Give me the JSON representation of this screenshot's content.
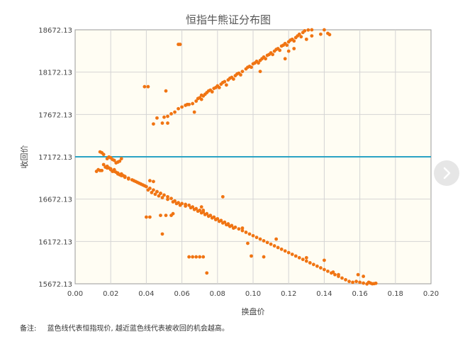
{
  "chart_data": {
    "type": "scatter",
    "title": "恒指牛熊证分布图",
    "xlabel": "换盘价",
    "ylabel": "收回价",
    "xlim": [
      0.0,
      0.2
    ],
    "ylim": [
      15672.13,
      18672.13
    ],
    "x_ticks": [
      "0.00",
      "0.02",
      "0.04",
      "0.06",
      "0.08",
      "0.10",
      "0.12",
      "0.14",
      "0.16",
      "0.18",
      "0.20"
    ],
    "y_ticks": [
      "15672.13",
      "16172.13",
      "16672.13",
      "17172.13",
      "17672.13",
      "18172.13",
      "18672.13"
    ],
    "grid": true,
    "reference_line": {
      "y": 17172.13,
      "color": "#2aa3c4"
    },
    "point_color": "#f07412",
    "series": [
      {
        "points": [
          [
            0.046,
            17630
          ],
          [
            0.05,
            17640
          ],
          [
            0.052,
            17650
          ],
          [
            0.054,
            17680
          ],
          [
            0.056,
            17700
          ],
          [
            0.058,
            17740
          ],
          [
            0.06,
            17760
          ],
          [
            0.062,
            17780
          ],
          [
            0.064,
            17790
          ],
          [
            0.066,
            17800
          ],
          [
            0.068,
            17830
          ],
          [
            0.069,
            17860
          ],
          [
            0.07,
            17870
          ],
          [
            0.072,
            17890
          ],
          [
            0.073,
            17910
          ],
          [
            0.074,
            17930
          ],
          [
            0.075,
            17950
          ],
          [
            0.076,
            17960
          ],
          [
            0.078,
            17980
          ],
          [
            0.079,
            17990
          ],
          [
            0.08,
            18010
          ],
          [
            0.082,
            18030
          ],
          [
            0.083,
            18050
          ],
          [
            0.084,
            18060
          ],
          [
            0.086,
            18080
          ],
          [
            0.087,
            18100
          ],
          [
            0.088,
            18110
          ],
          [
            0.09,
            18130
          ],
          [
            0.091,
            18150
          ],
          [
            0.092,
            18160
          ],
          [
            0.094,
            18180
          ],
          [
            0.096,
            18210
          ],
          [
            0.097,
            18230
          ],
          [
            0.098,
            18240
          ],
          [
            0.1,
            18270
          ],
          [
            0.101,
            18280
          ],
          [
            0.102,
            18300
          ],
          [
            0.104,
            18310
          ],
          [
            0.105,
            18330
          ],
          [
            0.106,
            18350
          ],
          [
            0.108,
            18370
          ],
          [
            0.109,
            18380
          ],
          [
            0.11,
            18400
          ],
          [
            0.112,
            18420
          ],
          [
            0.113,
            18440
          ],
          [
            0.114,
            18450
          ],
          [
            0.116,
            18480
          ],
          [
            0.117,
            18490
          ],
          [
            0.118,
            18510
          ],
          [
            0.12,
            18530
          ],
          [
            0.121,
            18550
          ],
          [
            0.122,
            18560
          ],
          [
            0.124,
            18580
          ],
          [
            0.125,
            18600
          ],
          [
            0.126,
            18620
          ],
          [
            0.128,
            18640
          ],
          [
            0.129,
            18660
          ],
          [
            0.131,
            18670
          ],
          [
            0.133,
            18672
          ],
          [
            0.071,
            17900
          ],
          [
            0.077,
            17940
          ],
          [
            0.081,
            17990
          ],
          [
            0.085,
            18020
          ],
          [
            0.089,
            18090
          ],
          [
            0.093,
            18140
          ],
          [
            0.099,
            18230
          ],
          [
            0.103,
            18280
          ],
          [
            0.107,
            18330
          ],
          [
            0.111,
            18380
          ],
          [
            0.115,
            18430
          ],
          [
            0.119,
            18490
          ],
          [
            0.123,
            18540
          ],
          [
            0.127,
            18590
          ],
          [
            0.039,
            18000
          ],
          [
            0.041,
            18000
          ],
          [
            0.051,
            17950
          ],
          [
            0.058,
            18500
          ],
          [
            0.059,
            18500
          ],
          [
            0.044,
            17560
          ],
          [
            0.049,
            17570
          ],
          [
            0.052,
            17570
          ],
          [
            0.063,
            17790
          ],
          [
            0.067,
            17700
          ],
          [
            0.071,
            17850
          ],
          [
            0.104,
            18180
          ],
          [
            0.118,
            18330
          ],
          [
            0.12,
            18420
          ],
          [
            0.123,
            18450
          ],
          [
            0.13,
            18560
          ],
          [
            0.133,
            18600
          ],
          [
            0.138,
            18620
          ],
          [
            0.142,
            18630
          ],
          [
            0.143,
            18615
          ],
          [
            0.14,
            18672
          ]
        ]
      },
      {
        "points": [
          [
            0.013,
            17020
          ],
          [
            0.015,
            17010
          ],
          [
            0.016,
            17080
          ],
          [
            0.017,
            17050
          ],
          [
            0.018,
            17060
          ],
          [
            0.019,
            17040
          ],
          [
            0.02,
            17030
          ],
          [
            0.021,
            17000
          ],
          [
            0.022,
            17020
          ],
          [
            0.023,
            16990
          ],
          [
            0.024,
            16970
          ],
          [
            0.025,
            16960
          ],
          [
            0.026,
            16970
          ],
          [
            0.027,
            16950
          ],
          [
            0.028,
            16940
          ],
          [
            0.03,
            16920
          ],
          [
            0.032,
            16900
          ],
          [
            0.034,
            16880
          ],
          [
            0.036,
            16860
          ],
          [
            0.038,
            16840
          ],
          [
            0.04,
            16820
          ],
          [
            0.042,
            16800
          ],
          [
            0.044,
            16780
          ],
          [
            0.046,
            16760
          ],
          [
            0.048,
            16740
          ],
          [
            0.05,
            16720
          ],
          [
            0.052,
            16700
          ],
          [
            0.054,
            16680
          ],
          [
            0.056,
            16650
          ],
          [
            0.058,
            16630
          ],
          [
            0.06,
            16620
          ],
          [
            0.062,
            16610
          ],
          [
            0.064,
            16600
          ],
          [
            0.066,
            16580
          ],
          [
            0.068,
            16560
          ],
          [
            0.07,
            16540
          ],
          [
            0.072,
            16520
          ],
          [
            0.074,
            16500
          ],
          [
            0.076,
            16480
          ],
          [
            0.078,
            16460
          ],
          [
            0.08,
            16440
          ],
          [
            0.082,
            16420
          ],
          [
            0.084,
            16400
          ],
          [
            0.086,
            16380
          ],
          [
            0.088,
            16360
          ],
          [
            0.09,
            16340
          ],
          [
            0.092,
            16320
          ],
          [
            0.094,
            16300
          ],
          [
            0.096,
            16280
          ],
          [
            0.098,
            16260
          ],
          [
            0.1,
            16240
          ],
          [
            0.102,
            16220
          ],
          [
            0.104,
            16200
          ],
          [
            0.106,
            16180
          ],
          [
            0.108,
            16160
          ],
          [
            0.11,
            16140
          ],
          [
            0.112,
            16120
          ],
          [
            0.114,
            16100
          ],
          [
            0.116,
            16080
          ],
          [
            0.118,
            16060
          ],
          [
            0.12,
            16040
          ],
          [
            0.122,
            16020
          ],
          [
            0.124,
            16000
          ],
          [
            0.126,
            15980
          ],
          [
            0.128,
            15960
          ],
          [
            0.13,
            15940
          ],
          [
            0.132,
            15920
          ],
          [
            0.134,
            15900
          ],
          [
            0.136,
            15880
          ],
          [
            0.138,
            15860
          ],
          [
            0.14,
            15840
          ],
          [
            0.142,
            15820
          ],
          [
            0.144,
            15800
          ],
          [
            0.146,
            15780
          ],
          [
            0.148,
            15760
          ],
          [
            0.15,
            15740
          ],
          [
            0.152,
            15720
          ],
          [
            0.154,
            15700
          ],
          [
            0.156,
            15690
          ],
          [
            0.158,
            15700
          ],
          [
            0.16,
            15690
          ],
          [
            0.162,
            15680
          ],
          [
            0.164,
            15670
          ],
          [
            0.166,
            15680
          ],
          [
            0.167,
            15672
          ],
          [
            0.168,
            15674
          ],
          [
            0.169,
            15678
          ],
          [
            0.012,
            17000
          ],
          [
            0.014,
            17010
          ],
          [
            0.015,
            17220
          ],
          [
            0.014,
            17230
          ],
          [
            0.016,
            17200
          ],
          [
            0.018,
            17150
          ],
          [
            0.019,
            17170
          ],
          [
            0.02,
            17160
          ],
          [
            0.021,
            17140
          ],
          [
            0.022,
            17130
          ],
          [
            0.023,
            17100
          ],
          [
            0.024,
            17110
          ],
          [
            0.025,
            17120
          ],
          [
            0.026,
            17150
          ],
          [
            0.018,
            17040
          ],
          [
            0.02,
            17020
          ],
          [
            0.022,
            17000
          ],
          [
            0.024,
            16980
          ],
          [
            0.026,
            16950
          ],
          [
            0.028,
            16930
          ],
          [
            0.03,
            16910
          ],
          [
            0.033,
            16890
          ],
          [
            0.035,
            16870
          ],
          [
            0.037,
            16850
          ],
          [
            0.039,
            16830
          ],
          [
            0.041,
            16780
          ],
          [
            0.043,
            16750
          ],
          [
            0.045,
            16730
          ],
          [
            0.047,
            16710
          ],
          [
            0.049,
            16690
          ],
          [
            0.052,
            16670
          ],
          [
            0.055,
            16640
          ],
          [
            0.057,
            16620
          ],
          [
            0.059,
            16600
          ],
          [
            0.062,
            16590
          ],
          [
            0.065,
            16570
          ],
          [
            0.067,
            16550
          ],
          [
            0.069,
            16530
          ],
          [
            0.071,
            16510
          ],
          [
            0.073,
            16490
          ],
          [
            0.075,
            16470
          ],
          [
            0.077,
            16450
          ],
          [
            0.079,
            16430
          ],
          [
            0.081,
            16410
          ],
          [
            0.083,
            16390
          ],
          [
            0.085,
            16370
          ],
          [
            0.087,
            16350
          ],
          [
            0.089,
            16330
          ],
          [
            0.042,
            16890
          ],
          [
            0.044,
            16880
          ],
          [
            0.046,
            16760
          ],
          [
            0.048,
            16740
          ],
          [
            0.04,
            16460
          ],
          [
            0.042,
            16460
          ],
          [
            0.048,
            16480
          ],
          [
            0.051,
            16480
          ],
          [
            0.049,
            16260
          ],
          [
            0.054,
            16480
          ],
          [
            0.055,
            16500
          ],
          [
            0.064,
            15990
          ],
          [
            0.066,
            15990
          ],
          [
            0.068,
            15990
          ],
          [
            0.07,
            15990
          ],
          [
            0.072,
            15990
          ],
          [
            0.074,
            15800
          ],
          [
            0.071,
            16580
          ],
          [
            0.072,
            16540
          ],
          [
            0.083,
            16700
          ],
          [
            0.086,
            16370
          ],
          [
            0.094,
            16330
          ],
          [
            0.097,
            16150
          ],
          [
            0.099,
            16000
          ],
          [
            0.106,
            15990
          ],
          [
            0.113,
            16200
          ],
          [
            0.13,
            15980
          ],
          [
            0.14,
            15950
          ],
          [
            0.145,
            15810
          ],
          [
            0.148,
            15780
          ],
          [
            0.159,
            15780
          ],
          [
            0.162,
            15760
          ],
          [
            0.165,
            15690
          ]
        ]
      }
    ]
  },
  "note": {
    "prefix": "备注:",
    "text": "蓝色线代表恒指现价, 越近蓝色线代表被收回的机会越高。"
  },
  "nav": {
    "icon": "chevron-right-icon"
  }
}
